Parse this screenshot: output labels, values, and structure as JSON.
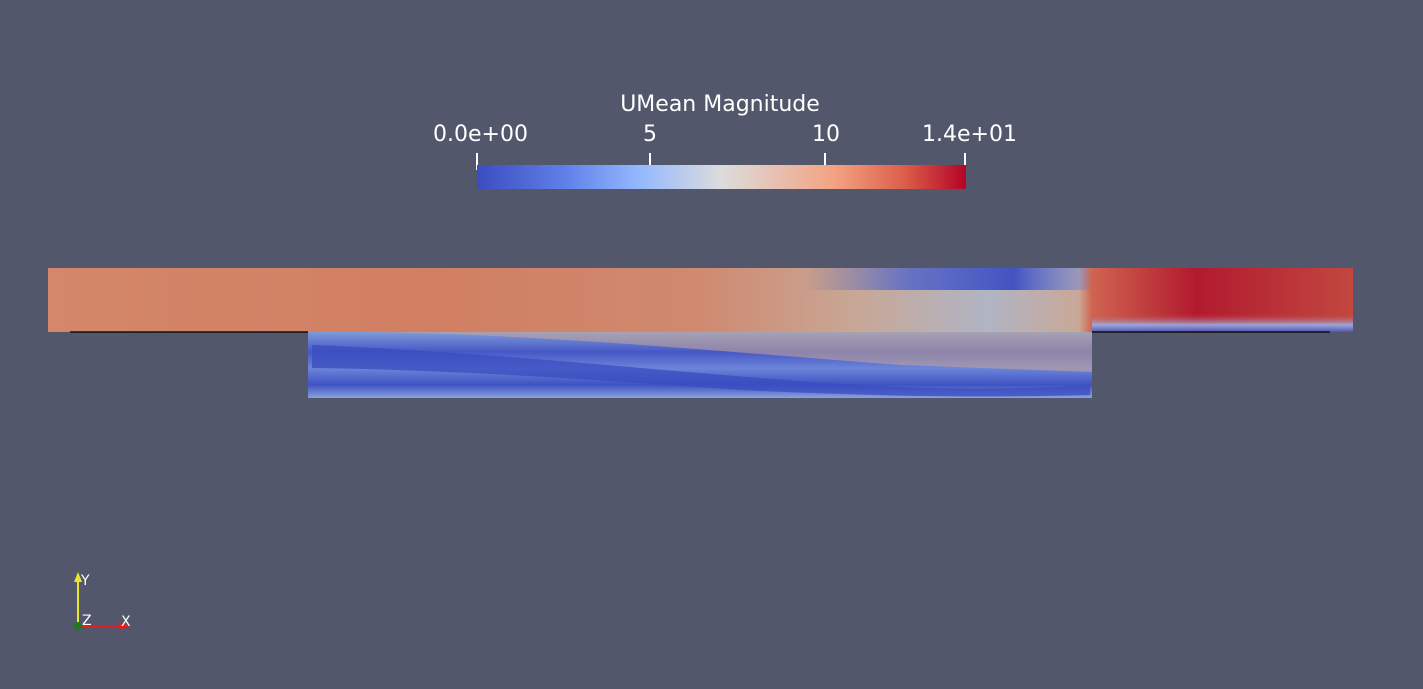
{
  "scalar_bar": {
    "title": "UMean Magnitude",
    "ticks": [
      {
        "label": "0.0e+00",
        "value": 0
      },
      {
        "label": "5",
        "value": 5
      },
      {
        "label": "10",
        "value": 10
      },
      {
        "label": "1.4e+01",
        "value": 14
      }
    ],
    "range": [
      0,
      14
    ],
    "colormap": "cool-to-warm",
    "colors": {
      "low": "#3b4cc0",
      "mid": "#dcdcdc",
      "high": "#b40426"
    }
  },
  "orientation_axes": {
    "x_label": "X",
    "y_label": "Y",
    "z_label": "Z",
    "x_color": "#e02020",
    "y_color": "#e6e62a",
    "z_color": "#1f7a1f"
  },
  "background_color": "#52576b"
}
